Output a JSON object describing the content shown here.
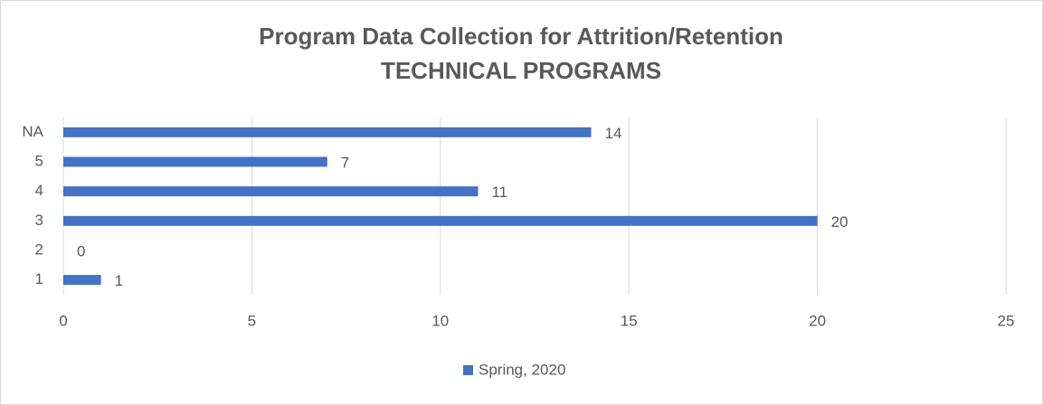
{
  "chart_data": {
    "type": "bar",
    "orientation": "horizontal",
    "title": [
      "Program Data Collection for Attrition/Retention",
      "TECHNICAL PROGRAMS"
    ],
    "categories": [
      "1",
      "2",
      "3",
      "4",
      "5",
      "NA"
    ],
    "series": [
      {
        "name": "Spring, 2020",
        "color": "#4472c4",
        "values": [
          1,
          0,
          20,
          11,
          7,
          14
        ]
      }
    ],
    "xlim": [
      0,
      25
    ],
    "xticks": [
      0,
      5,
      10,
      15,
      20,
      25
    ],
    "grid": true,
    "legend": "bottom"
  }
}
